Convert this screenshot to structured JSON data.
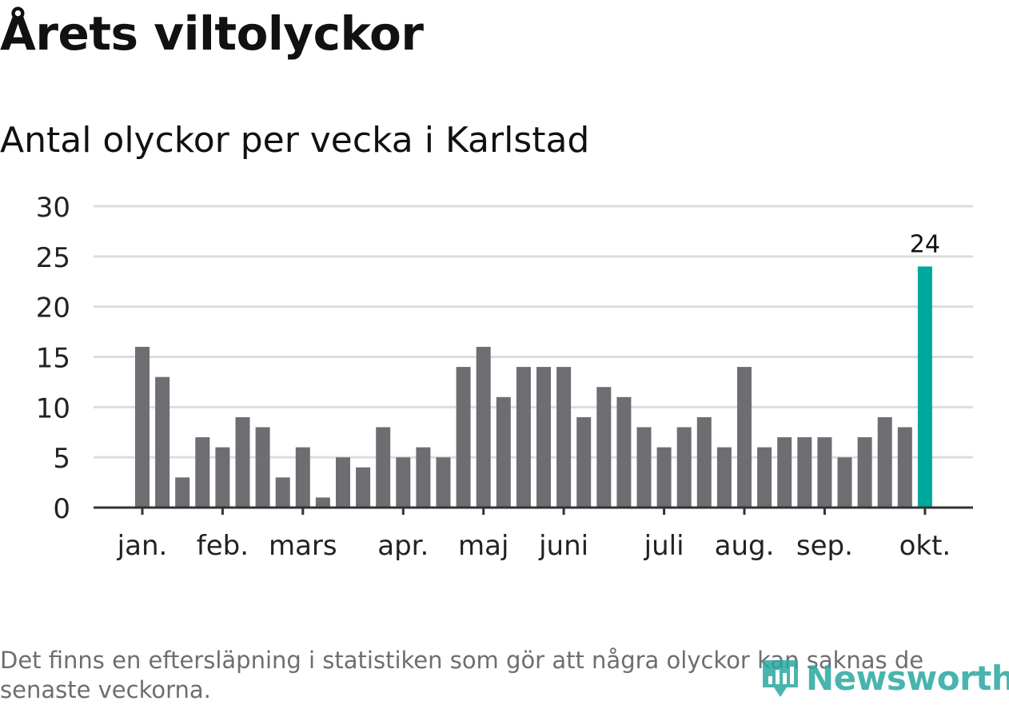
{
  "title": "Årets viltolyckor",
  "subtitle": "Antal olyckor per vecka i Karlstad",
  "footnote": "Det finns en eftersläpning i statistiken som gör att några olyckor kan saknas de senaste veckorna.",
  "brand": {
    "name": "Newsworthy",
    "icon": "newsworthy-logo-icon",
    "color": "#2aa8a0"
  },
  "colors": {
    "bar": "#6e6d72",
    "highlight": "#00a79d",
    "grid": "#dddddd",
    "axis": "#333333"
  },
  "chart_data": {
    "type": "bar",
    "title": "Antal olyckor per vecka i Karlstad",
    "xlabel": "",
    "ylabel": "",
    "ylim": [
      0,
      30
    ],
    "yticks": [
      0,
      5,
      10,
      15,
      20,
      25,
      30
    ],
    "grid": true,
    "values": [
      16,
      13,
      3,
      7,
      6,
      9,
      8,
      3,
      6,
      1,
      5,
      4,
      8,
      5,
      6,
      5,
      14,
      16,
      11,
      14,
      14,
      14,
      9,
      12,
      11,
      8,
      6,
      8,
      9,
      6,
      14,
      6,
      7,
      7,
      7,
      5,
      7,
      9,
      8,
      24
    ],
    "month_labels": [
      {
        "label": "jan.",
        "week_index": 0
      },
      {
        "label": "feb.",
        "week_index": 4
      },
      {
        "label": "mars",
        "week_index": 8
      },
      {
        "label": "apr.",
        "week_index": 13
      },
      {
        "label": "maj",
        "week_index": 17
      },
      {
        "label": "juni",
        "week_index": 21
      },
      {
        "label": "juli",
        "week_index": 26
      },
      {
        "label": "aug.",
        "week_index": 30
      },
      {
        "label": "sep.",
        "week_index": 34
      },
      {
        "label": "okt.",
        "week_index": 39
      }
    ],
    "highlight_index": 39,
    "highlight_label": "24"
  }
}
